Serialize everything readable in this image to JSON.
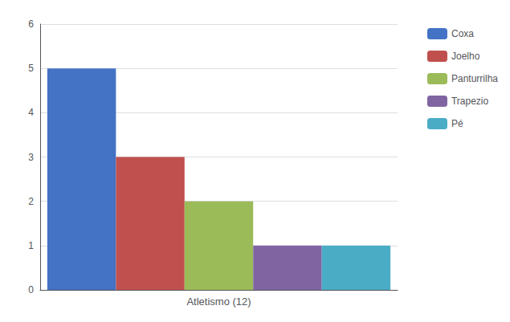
{
  "chart_data": {
    "type": "bar",
    "categories": [
      "Atletismo (12)"
    ],
    "series": [
      {
        "name": "Coxa",
        "color": "#4472C4",
        "values": [
          5
        ]
      },
      {
        "name": "Joelho",
        "color": "#C0504D",
        "values": [
          3
        ]
      },
      {
        "name": "Panturrilha",
        "color": "#9BBB59",
        "values": [
          2
        ]
      },
      {
        "name": "Trapezio",
        "color": "#8064A2",
        "values": [
          1
        ]
      },
      {
        "name": "Pé",
        "color": "#4BACC6",
        "values": [
          1
        ]
      }
    ],
    "ylim": [
      0,
      6
    ],
    "yticks": [
      0,
      1,
      2,
      3,
      4,
      5,
      6
    ],
    "grid": true,
    "legend": "upper right"
  }
}
